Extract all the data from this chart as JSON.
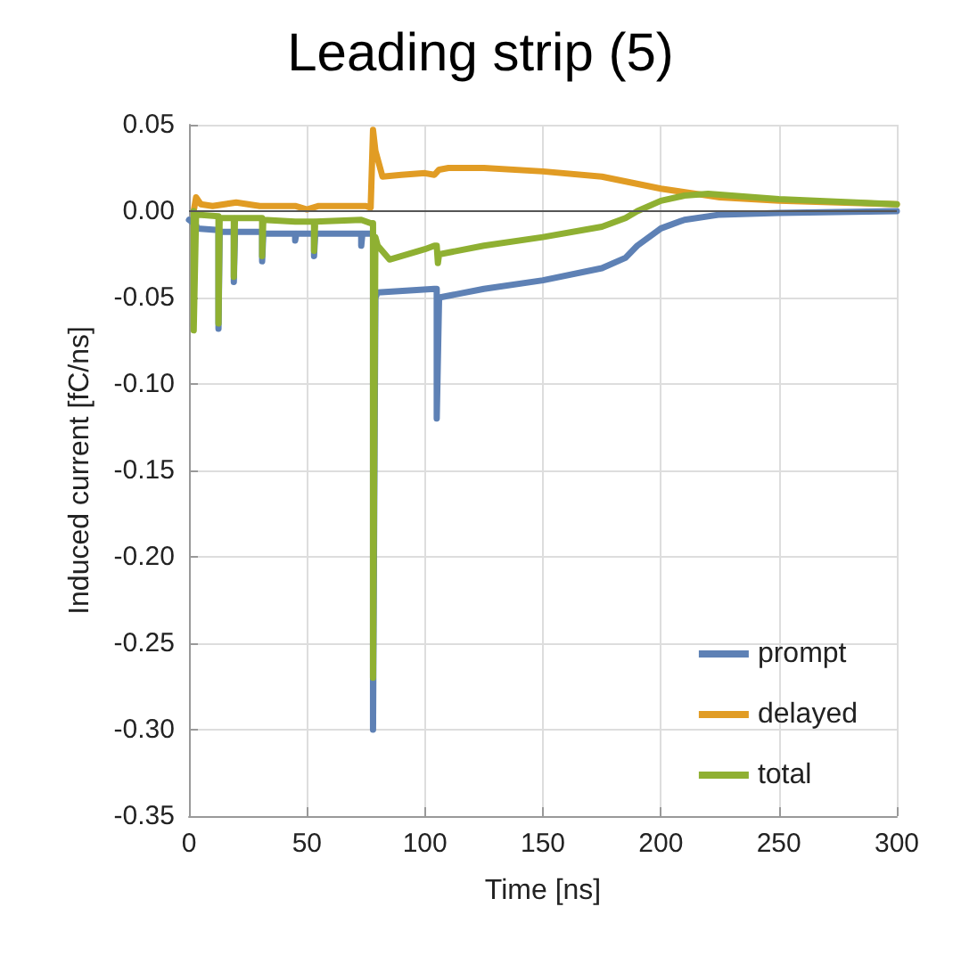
{
  "chart_data": {
    "type": "line",
    "title": "Leading strip (5)",
    "xlabel": "Time [ns]",
    "ylabel": "Induced current [fC/ns]",
    "xlim": [
      0,
      300
    ],
    "xticks": [
      0,
      50,
      100,
      150,
      200,
      250,
      300
    ],
    "ylim": [
      -0.35,
      0.05
    ],
    "yticks": [
      {
        "value": 0.05,
        "label": "0.05"
      },
      {
        "value": 0,
        "label": "0.00"
      },
      {
        "value": -0.05,
        "label": "-0.05"
      },
      {
        "value": -0.1,
        "label": "-0.10"
      },
      {
        "value": -0.15,
        "label": "-0.15"
      },
      {
        "value": -0.2,
        "label": "-0.20"
      },
      {
        "value": -0.25,
        "label": "-0.25"
      },
      {
        "value": -0.3,
        "label": "-0.30"
      },
      {
        "value": -0.35,
        "label": "-0.35"
      }
    ],
    "grid": true,
    "legend": "bottom right",
    "marker": "none",
    "line_style": "solid",
    "ref_lines": [
      {
        "axis": "y",
        "value": 0,
        "color": "#555555"
      }
    ],
    "series": [
      {
        "name": "prompt",
        "color": "#5e81b5",
        "x": [
          0,
          3,
          3.5,
          12.5,
          12.5,
          13,
          19,
          19,
          19.5,
          31,
          31,
          31.5,
          45,
          45,
          45.5,
          53,
          53,
          53.5,
          73,
          73,
          73.5,
          78,
          78,
          79,
          80,
          104,
          105,
          105,
          106,
          125,
          150,
          175,
          185,
          190,
          200,
          210,
          225,
          250,
          300
        ],
        "values": [
          -0.005,
          -0.008,
          -0.01,
          -0.011,
          -0.068,
          -0.012,
          -0.012,
          -0.041,
          -0.012,
          -0.012,
          -0.029,
          -0.013,
          -0.013,
          -0.017,
          -0.013,
          -0.013,
          -0.026,
          -0.013,
          -0.013,
          -0.02,
          -0.013,
          -0.013,
          -0.3,
          -0.05,
          -0.047,
          -0.045,
          -0.045,
          -0.12,
          -0.05,
          -0.045,
          -0.04,
          -0.033,
          -0.027,
          -0.02,
          -0.01,
          -0.005,
          -0.002,
          -0.001,
          0
        ]
      },
      {
        "name": "delayed",
        "color": "#e19c24",
        "x": [
          2,
          3,
          5,
          10,
          20,
          30,
          45,
          50,
          55,
          75,
          77,
          78,
          79,
          82,
          90,
          100,
          104,
          106,
          110,
          125,
          150,
          175,
          200,
          225,
          250,
          300
        ],
        "values": [
          0,
          0.008,
          0.004,
          0.003,
          0.005,
          0.003,
          0.003,
          0.001,
          0.003,
          0.003,
          0.002,
          0.047,
          0.035,
          0.02,
          0.021,
          0.022,
          0.021,
          0.024,
          0.025,
          0.025,
          0.023,
          0.02,
          0.013,
          0.008,
          0.006,
          0.004
        ]
      },
      {
        "name": "total",
        "color": "#8fb032",
        "x": [
          2,
          2,
          3,
          12.5,
          12.5,
          13,
          19,
          19,
          19.5,
          31,
          31,
          31.5,
          45,
          53,
          53,
          53.5,
          73,
          77,
          78,
          78,
          79,
          80,
          85,
          100,
          104,
          105,
          105.5,
          106,
          125,
          150,
          175,
          185,
          190,
          200,
          210,
          220,
          250,
          300
        ],
        "values": [
          0,
          -0.069,
          -0.002,
          -0.003,
          -0.065,
          -0.004,
          -0.004,
          -0.038,
          -0.004,
          -0.004,
          -0.026,
          -0.005,
          -0.006,
          -0.006,
          -0.023,
          -0.006,
          -0.005,
          -0.007,
          -0.007,
          -0.27,
          -0.015,
          -0.02,
          -0.028,
          -0.022,
          -0.02,
          -0.02,
          -0.03,
          -0.025,
          -0.02,
          -0.015,
          -0.009,
          -0.004,
          0,
          0.006,
          0.009,
          0.01,
          0.007,
          0.004
        ]
      }
    ]
  }
}
